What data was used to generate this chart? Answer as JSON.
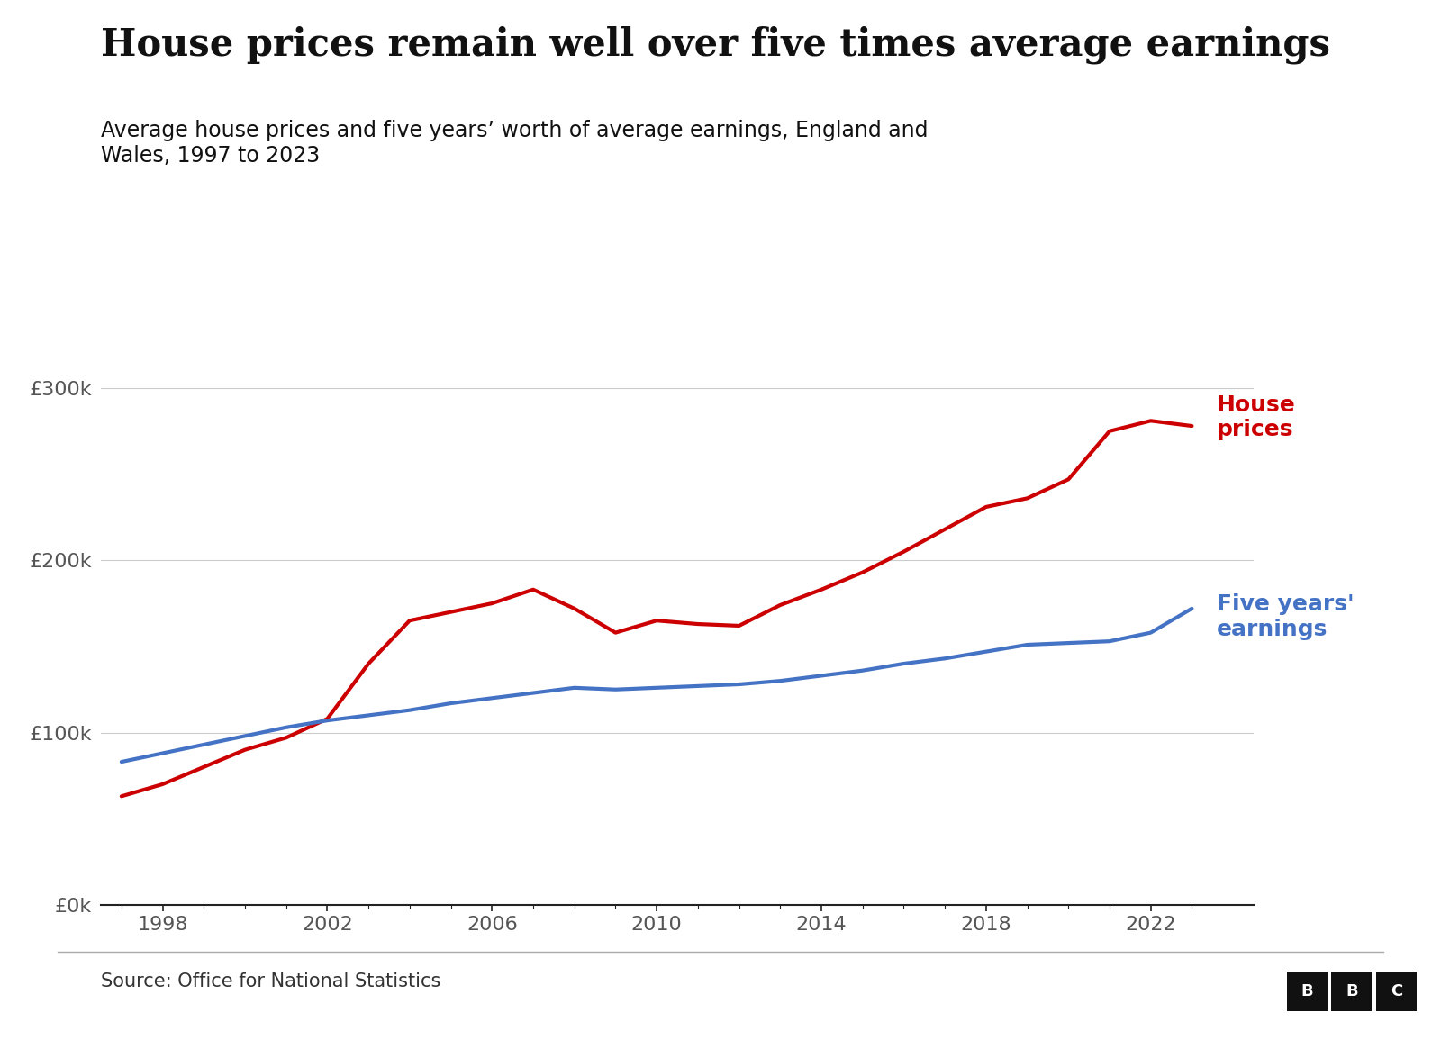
{
  "title": "House prices remain well over five times average earnings",
  "subtitle": "Average house prices and five years’ worth of average earnings, England and\nWales, 1997 to 2023",
  "source": "Source: Office for National Statistics",
  "house_prices": {
    "years": [
      1997,
      1998,
      1999,
      2000,
      2001,
      2002,
      2003,
      2004,
      2005,
      2006,
      2007,
      2008,
      2009,
      2010,
      2011,
      2012,
      2013,
      2014,
      2015,
      2016,
      2017,
      2018,
      2019,
      2020,
      2021,
      2022,
      2023
    ],
    "values": [
      63000,
      70000,
      80000,
      90000,
      97000,
      108000,
      140000,
      165000,
      170000,
      175000,
      183000,
      172000,
      158000,
      165000,
      163000,
      162000,
      174000,
      183000,
      193000,
      205000,
      218000,
      231000,
      236000,
      247000,
      275000,
      281000,
      278000
    ],
    "color": "#cc0000",
    "label": "House\nprices",
    "label_color": "#cc0000"
  },
  "five_years_earnings": {
    "years": [
      1997,
      1998,
      1999,
      2000,
      2001,
      2002,
      2003,
      2004,
      2005,
      2006,
      2007,
      2008,
      2009,
      2010,
      2011,
      2012,
      2013,
      2014,
      2015,
      2016,
      2017,
      2018,
      2019,
      2020,
      2021,
      2022,
      2023
    ],
    "values": [
      83000,
      88000,
      93000,
      98000,
      103000,
      107000,
      110000,
      113000,
      117000,
      120000,
      123000,
      126000,
      125000,
      126000,
      127000,
      128000,
      130000,
      133000,
      136000,
      140000,
      143000,
      147000,
      151000,
      152000,
      153000,
      158000,
      172000
    ],
    "color": "#4472c4",
    "label": "Five years'\nearnings",
    "label_color": "#4472c4"
  },
  "ylim": [
    0,
    320000
  ],
  "yticks": [
    0,
    100000,
    200000,
    300000
  ],
  "ytick_labels": [
    "£0k",
    "£100k",
    "£200k",
    "£300k"
  ],
  "xticks": [
    1998,
    2002,
    2006,
    2010,
    2014,
    2018,
    2022
  ],
  "xlim": [
    1996.5,
    2024.5
  ],
  "line_width": 3.0,
  "background_color": "#ffffff",
  "grid_color": "#cccccc",
  "axis_color": "#222222",
  "title_fontsize": 30,
  "subtitle_fontsize": 17,
  "tick_fontsize": 16,
  "label_fontsize": 18,
  "source_fontsize": 15
}
